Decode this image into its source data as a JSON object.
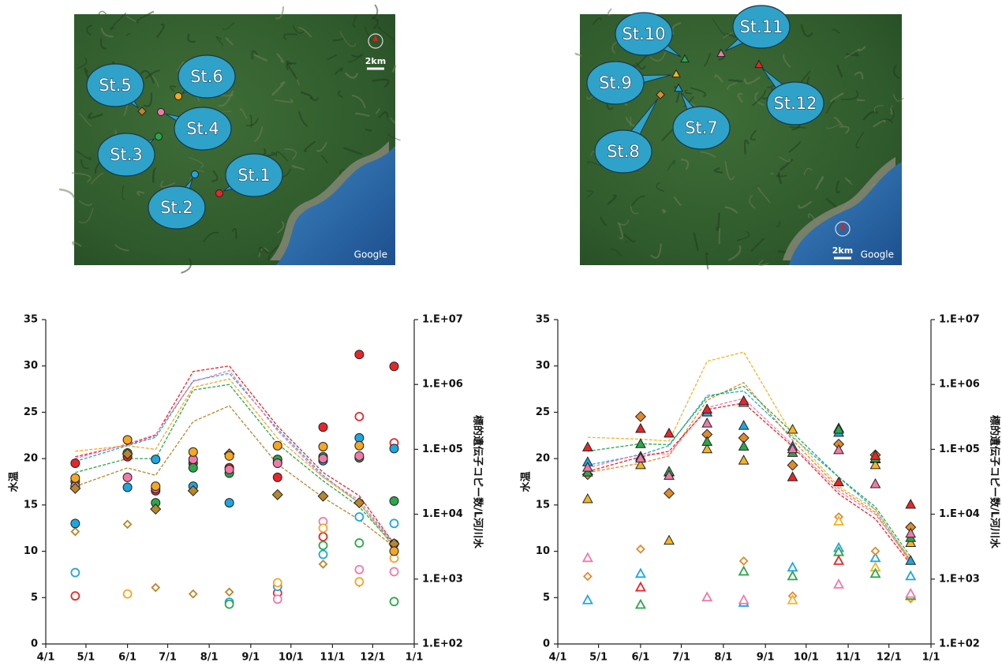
{
  "maps": [
    {
      "labels": [
        "St.1",
        "St.2",
        "St.3",
        "St.4",
        "St.5",
        "St.6"
      ],
      "scale": "2km",
      "credit": "Google"
    },
    {
      "labels": [
        "St.7",
        "St.8",
        "St.9",
        "St.10",
        "St.11",
        "St.12"
      ],
      "scale": "2km",
      "credit": "Google"
    }
  ],
  "chart_data": [
    {
      "type": "scatter",
      "ylabel": "水温",
      "y2label": "標的遺伝子コピー数/L河川水",
      "x": [
        22,
        61,
        82,
        110,
        137,
        173,
        207,
        234,
        260
      ],
      "xlim": [
        0,
        275
      ],
      "xticks": [
        {
          "value": 0,
          "label": "4/1"
        },
        {
          "value": 30,
          "label": "5/1"
        },
        {
          "value": 61,
          "label": "6/1"
        },
        {
          "value": 91,
          "label": "7/1"
        },
        {
          "value": 122,
          "label": "8/1"
        },
        {
          "value": 153,
          "label": "9/1"
        },
        {
          "value": 183,
          "label": "10/1"
        },
        {
          "value": 214,
          "label": "11/1"
        },
        {
          "value": 244,
          "label": "12/1"
        },
        {
          "value": 275,
          "label": "1/1"
        }
      ],
      "ylim": [
        0,
        35
      ],
      "yticks": [
        0,
        5,
        10,
        15,
        20,
        25,
        30,
        35
      ],
      "y2log": true,
      "y2lim": [
        100,
        10000000
      ],
      "y2ticks": [
        {
          "value": 100,
          "label": "1.E+02"
        },
        {
          "value": 1000,
          "label": "1.E+03"
        },
        {
          "value": 10000,
          "label": "1.E+04"
        },
        {
          "value": 100000,
          "label": "1.E+05"
        },
        {
          "value": 1000000,
          "label": "1.E+06"
        },
        {
          "value": 10000000,
          "label": "1.E+07"
        }
      ],
      "series": [
        {
          "color": "#e8262a",
          "marker": "circle",
          "temp": [
            20.2,
            21.5,
            22.5,
            29.4,
            30.0,
            23.5,
            18.5,
            16.0,
            10.8
          ],
          "filled": [
            61000,
            77000,
            23000,
            61000,
            52000,
            37000,
            220000,
            2900000,
            1900000
          ],
          "open": [
            550,
            null,
            null,
            null,
            null,
            610,
            4500,
            320000,
            126000
          ]
        },
        {
          "color": "#1ea6e0",
          "marker": "circle",
          "temp": [
            19.7,
            21.4,
            22.3,
            28.4,
            29.2,
            23.2,
            18.2,
            15.2,
            10.7
          ],
          "filled": [
            7200,
            26000,
            70000,
            27000,
            15000,
            63000,
            67000,
            150000,
            103000
          ],
          "open": [
            1260,
            null,
            null,
            null,
            440,
            770,
            2400,
            9100,
            7200
          ]
        },
        {
          "color": "#2aa84a",
          "marker": "circle",
          "temp": [
            18.5,
            20.0,
            20.0,
            27.4,
            28.0,
            21.6,
            17.6,
            14.8,
            10.6
          ],
          "filled": [
            32000,
            88000,
            15000,
            52000,
            43000,
            70000,
            77000,
            74000,
            16000
          ],
          "open": [
            null,
            null,
            null,
            null,
            410,
            null,
            3300,
            3600,
            450
          ]
        },
        {
          "color": "#f07aa8",
          "marker": "circle",
          "temp": [
            20.0,
            21.6,
            22.6,
            28.3,
            29.5,
            23.0,
            18.0,
            15.5,
            10.8
          ],
          "filled": [
            27000,
            37000,
            25000,
            70000,
            49000,
            61000,
            72000,
            79000,
            3500
          ],
          "open": [
            null,
            null,
            null,
            null,
            null,
            490,
            7700,
            1400,
            1300
          ]
        },
        {
          "color": "#b8862b",
          "marker": "diamond",
          "temp": [
            17.0,
            19.0,
            18.2,
            24.0,
            25.7,
            19.4,
            15.8,
            13.4,
            10.5
          ],
          "filled": [
            25000,
            85000,
            12000,
            23000,
            85000,
            20000,
            19000,
            15000,
            3500
          ],
          "open": [
            5400,
            7000,
            740,
            590,
            630,
            null,
            1700,
            880,
            null
          ]
        },
        {
          "color": "#f5a623",
          "marker": "circle",
          "temp": [
            20.8,
            21.4,
            21.0,
            27.7,
            28.6,
            22.2,
            18.0,
            15.2,
            10.4
          ],
          "filled": [
            36000,
            140000,
            27000,
            91000,
            79000,
            114000,
            110000,
            114000,
            2700
          ],
          "open": [
            null,
            590,
            null,
            null,
            null,
            880,
            6100,
            910,
            2100
          ]
        }
      ]
    },
    {
      "type": "scatter",
      "ylabel": "水温",
      "y2label": "標的遺伝子コピー数/L河川水",
      "x": [
        22,
        61,
        82,
        110,
        137,
        173,
        207,
        234,
        260
      ],
      "xlim": [
        0,
        275
      ],
      "xticks": [
        {
          "value": 0,
          "label": "4/1"
        },
        {
          "value": 30,
          "label": "5/1"
        },
        {
          "value": 61,
          "label": "6/1"
        },
        {
          "value": 91,
          "label": "7/1"
        },
        {
          "value": 122,
          "label": "8/1"
        },
        {
          "value": 153,
          "label": "9/1"
        },
        {
          "value": 183,
          "label": "10/1"
        },
        {
          "value": 214,
          "label": "11/1"
        },
        {
          "value": 244,
          "label": "12/1"
        },
        {
          "value": 275,
          "label": "1/1"
        }
      ],
      "ylim": [
        0,
        35
      ],
      "yticks": [
        0,
        5,
        10,
        15,
        20,
        25,
        30,
        35
      ],
      "y2log": true,
      "y2lim": [
        100,
        10000000
      ],
      "y2ticks": [
        {
          "value": 100,
          "label": "1.E+02"
        },
        {
          "value": 1000,
          "label": "1.E+03"
        },
        {
          "value": 10000,
          "label": "1.E+04"
        },
        {
          "value": 100000,
          "label": "1.E+05"
        },
        {
          "value": 1000000,
          "label": "1.E+06"
        },
        {
          "value": 10000000,
          "label": "1.E+07"
        }
      ],
      "series": [
        {
          "color": "#1ea6e0",
          "marker": "triangle",
          "temp": [
            19.3,
            20.4,
            21.4,
            26.8,
            27.3,
            22.3,
            18.0,
            14.5,
            9.0
          ],
          "filled": [
            63000,
            77000,
            44000,
            370000,
            230000,
            110000,
            180000,
            70000,
            1900
          ],
          "open": [
            470,
            1200,
            null,
            null,
            430,
            1500,
            3000,
            2100,
            1100
          ]
        },
        {
          "color": "#e08a2e",
          "marker": "diamond",
          "temp": [
            18.5,
            19.5,
            20.3,
            26.3,
            28.2,
            22.0,
            16.8,
            14.2,
            8.8
          ],
          "filled": [
            41000,
            320000,
            21000,
            170000,
            150000,
            57000,
            120000,
            82000,
            6300
          ],
          "open": [
            1100,
            2900,
            null,
            null,
            1900,
            550,
            9100,
            2700,
            500
          ]
        },
        {
          "color": "#f5b423",
          "marker": "triangle",
          "temp": [
            22.3,
            22.1,
            21.9,
            30.5,
            31.5,
            22.5,
            17.0,
            14.5,
            9.1
          ],
          "filled": [
            17000,
            57000,
            3900,
            100000,
            67000,
            200000,
            210000,
            57000,
            3600
          ],
          "open": [
            null,
            null,
            null,
            null,
            null,
            470,
            7700,
            1500,
            540
          ]
        },
        {
          "color": "#2aa84a",
          "marker": "triangle",
          "temp": [
            20.8,
            21.6,
            21.5,
            26.6,
            27.8,
            22.8,
            18.0,
            14.8,
            9.4
          ],
          "filled": [
            44000,
            120000,
            45000,
            130000,
            110000,
            88000,
            200000,
            72000,
            4300
          ],
          "open": [
            null,
            400,
            null,
            null,
            1300,
            1100,
            2600,
            1200,
            550
          ]
        },
        {
          "color": "#f07aa8",
          "marker": "triangle",
          "temp": [
            19.0,
            20.5,
            20.5,
            25.5,
            26.5,
            21.5,
            16.5,
            14.0,
            9.0
          ],
          "filled": [
            52000,
            72000,
            39000,
            250000,
            520000,
            100000,
            97000,
            29000,
            5000
          ],
          "open": [
            2100,
            null,
            null,
            520,
            470,
            null,
            820,
            null,
            590
          ]
        },
        {
          "color": "#e8262a",
          "marker": "triangle",
          "temp": [
            18.6,
            20.2,
            20.8,
            25.3,
            26.0,
            21.3,
            16.2,
            13.5,
            8.6
          ],
          "filled": [
            107000,
            206000,
            175000,
            411000,
            553000,
            37000,
            31000,
            79000,
            14000
          ],
          "open": [
            null,
            740,
            null,
            null,
            null,
            null,
            1900,
            null,
            null
          ]
        }
      ]
    }
  ]
}
